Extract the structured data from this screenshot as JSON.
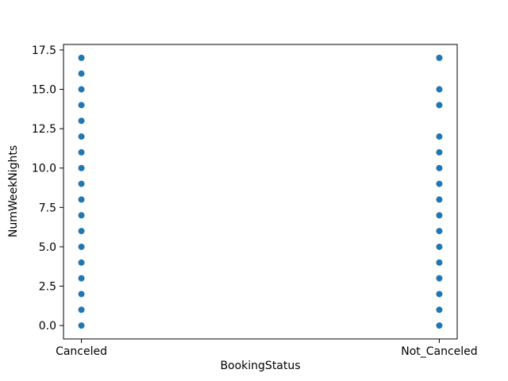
{
  "figure": {
    "background": "#ffffff"
  },
  "chart_data": {
    "type": "scatter",
    "title": "",
    "xlabel": "BookingStatus",
    "ylabel": "NumWeekNights",
    "categories": [
      "Canceled",
      "Not_Canceled"
    ],
    "series": [
      {
        "name": "Canceled",
        "values": [
          0,
          1,
          2,
          3,
          4,
          5,
          6,
          7,
          8,
          9,
          10,
          11,
          12,
          13,
          14,
          15,
          16,
          17
        ]
      },
      {
        "name": "Not_Canceled",
        "values": [
          0,
          1,
          2,
          3,
          4,
          5,
          6,
          7,
          8,
          9,
          10,
          11,
          12,
          14,
          15,
          17
        ]
      }
    ],
    "yticks": [
      0.0,
      2.5,
      5.0,
      7.5,
      10.0,
      12.5,
      15.0,
      17.5
    ],
    "ytick_labels": [
      "0.0",
      "2.5",
      "5.0",
      "7.5",
      "10.0",
      "12.5",
      "15.0",
      "17.5"
    ],
    "ylim": [
      -0.85,
      17.85
    ],
    "xlim": [
      -0.05,
      1.05
    ],
    "grid": false,
    "marker_color": "#1f77b4",
    "marker_diameter_px": 8,
    "axis_color": "#000000"
  }
}
